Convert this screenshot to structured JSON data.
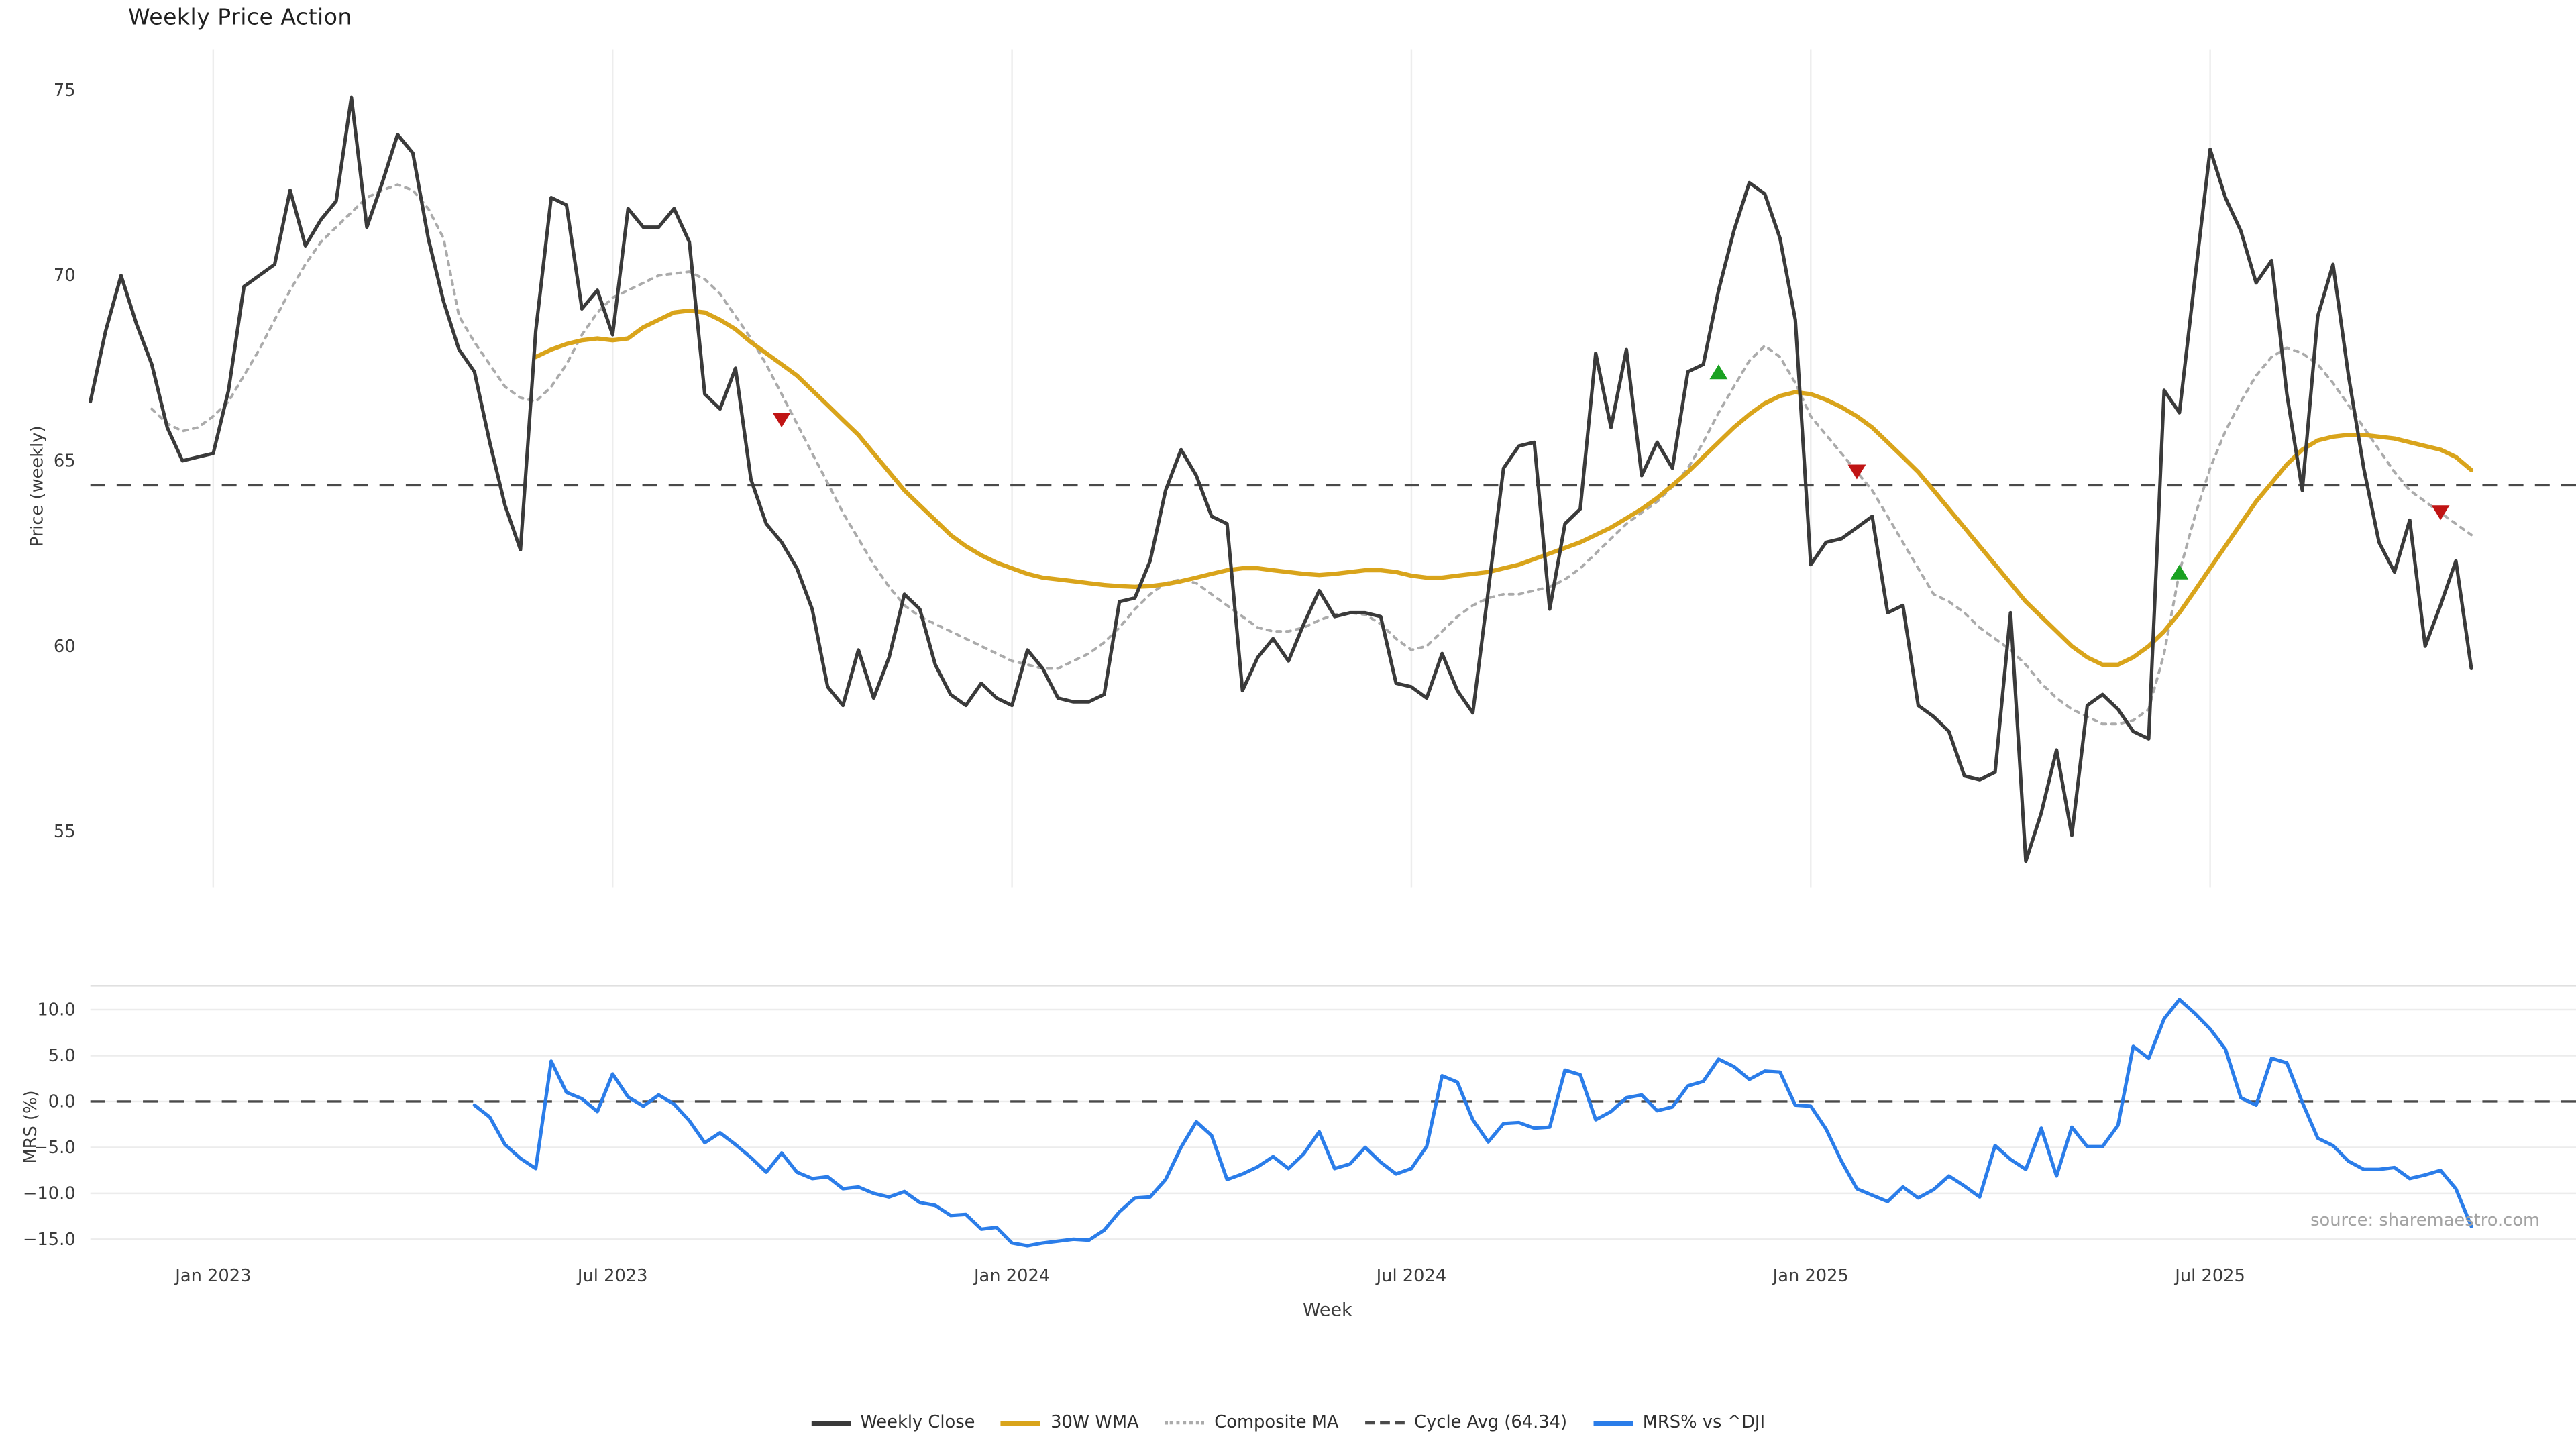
{
  "title": "Weekly Price Action",
  "xlabel": "Week",
  "source": "source: sharemaestro.com",
  "colors": {
    "close": "#3a3a3a",
    "wma": "#d9a41b",
    "composite": "#ababab",
    "cycle": "#4a4a4a",
    "mrs": "#2b7de9",
    "marker_up": "#1aa121",
    "marker_down": "#c01414",
    "grid_v": "#ededed",
    "grid_h": "#ececec",
    "panel_border": "#e0e0e0",
    "tick_text": "#3c3c3c"
  },
  "price_panel": {
    "ylabel": "Price (weekly)",
    "yticks": [
      55,
      60,
      65,
      70,
      75
    ],
    "ylim": [
      53.5,
      76.1
    ]
  },
  "mrs_panel": {
    "ylabel": "MRS (%)",
    "yticks": [
      10,
      5,
      0,
      -5,
      -10,
      -15
    ],
    "ytick_labels": [
      "10.0",
      "5.0",
      "0.0",
      "−5.0",
      "−10.0",
      "−15.0"
    ],
    "ylim": [
      -17.8,
      12.6
    ]
  },
  "x_ticks": [
    {
      "week": 8,
      "label": "Jan 2023"
    },
    {
      "week": 34,
      "label": "Jul 2023"
    },
    {
      "week": 60,
      "label": "Jan 2024"
    },
    {
      "week": 86,
      "label": "Jul 2024"
    },
    {
      "week": 112,
      "label": "Jan 2025"
    },
    {
      "week": 138,
      "label": "Jul 2025"
    }
  ],
  "legend": [
    {
      "label": "Weekly Close",
      "style": "solid",
      "color": "#3a3a3a"
    },
    {
      "label": "30W WMA",
      "style": "solid",
      "color": "#d9a41b"
    },
    {
      "label": "Composite MA",
      "style": "dotted",
      "color": "#ababab"
    },
    {
      "label": "Cycle Avg (64.34)",
      "style": "dashed",
      "color": "#4a4a4a"
    },
    {
      "label": "MRS% vs ^DJI",
      "style": "solid",
      "color": "#2b7de9"
    }
  ],
  "chart_data": {
    "type": "line",
    "title": "Weekly Price Action",
    "x_axis": "weeks since Nov 2022 (Jan 2023 = week 8, 6-month tick spacing)",
    "cycle_avg": 64.34,
    "weekly_close": {
      "start_week": 0,
      "values": [
        66.6,
        68.5,
        70.0,
        68.7,
        67.6,
        65.9,
        65.0,
        65.1,
        65.2,
        66.9,
        69.7,
        70.0,
        70.3,
        72.3,
        70.8,
        71.5,
        72.0,
        74.8,
        71.3,
        72.5,
        73.8,
        73.3,
        71.0,
        69.3,
        68.0,
        67.4,
        65.5,
        63.8,
        62.6,
        68.5,
        72.1,
        71.9,
        69.1,
        69.6,
        68.4,
        71.8,
        71.3,
        71.3,
        71.8,
        70.9,
        66.8,
        66.4,
        67.5,
        64.5,
        63.3,
        62.8,
        62.1,
        61.0,
        58.9,
        58.4,
        59.9,
        58.6,
        59.7,
        61.4,
        61.0,
        59.5,
        58.7,
        58.4,
        59.0,
        58.6,
        58.4,
        59.9,
        59.4,
        58.6,
        58.5,
        58.5,
        58.7,
        61.2,
        61.3,
        62.3,
        64.2,
        65.3,
        64.6,
        63.5,
        63.3,
        58.8,
        59.7,
        60.2,
        59.6,
        60.6,
        61.5,
        60.8,
        60.9,
        60.9,
        60.8,
        59.0,
        58.9,
        58.6,
        59.8,
        58.8,
        58.2,
        61.5,
        64.8,
        65.4,
        65.5,
        61.0,
        63.3,
        63.7,
        67.9,
        65.9,
        68.0,
        64.6,
        65.5,
        64.8,
        67.4,
        67.6,
        69.6,
        71.2,
        72.5,
        72.2,
        71.0,
        68.8,
        62.2,
        62.8,
        62.9,
        63.2,
        63.5,
        60.9,
        61.1,
        58.4,
        58.1,
        57.7,
        56.5,
        56.4,
        56.6,
        60.9,
        54.2,
        55.5,
        57.2,
        54.9,
        58.4,
        58.7,
        58.3,
        57.7,
        57.5,
        66.9,
        66.3,
        69.9,
        73.4,
        72.1,
        71.2,
        69.8,
        70.4,
        66.8,
        64.2,
        68.9,
        70.3,
        67.3,
        64.8,
        62.8,
        62.0,
        63.4,
        60.0,
        61.1,
        62.3,
        59.4
      ]
    },
    "wma_30": {
      "start_week": 29,
      "values": [
        67.8,
        68.0,
        68.15,
        68.25,
        68.3,
        68.25,
        68.3,
        68.6,
        68.8,
        69.0,
        69.05,
        69.0,
        68.8,
        68.55,
        68.2,
        67.9,
        67.6,
        67.3,
        66.9,
        66.5,
        66.1,
        65.7,
        65.2,
        64.7,
        64.2,
        63.8,
        63.4,
        63.0,
        62.7,
        62.45,
        62.25,
        62.1,
        61.95,
        61.85,
        61.8,
        61.75,
        61.7,
        61.65,
        61.62,
        61.6,
        61.62,
        61.67,
        61.75,
        61.85,
        61.95,
        62.05,
        62.1,
        62.1,
        62.05,
        62.0,
        61.95,
        61.92,
        61.95,
        62.0,
        62.05,
        62.05,
        62.0,
        61.9,
        61.85,
        61.85,
        61.9,
        61.95,
        62.0,
        62.1,
        62.2,
        62.35,
        62.5,
        62.65,
        62.8,
        63.0,
        63.2,
        63.45,
        63.7,
        64.0,
        64.34,
        64.7,
        65.1,
        65.5,
        65.9,
        66.25,
        66.55,
        66.75,
        66.85,
        66.8,
        66.65,
        66.45,
        66.2,
        65.9,
        65.5,
        65.1,
        64.7,
        64.2,
        63.7,
        63.2,
        62.7,
        62.2,
        61.7,
        61.2,
        60.8,
        60.4,
        60.0,
        59.7,
        59.5,
        59.5,
        59.7,
        60.0,
        60.4,
        60.9,
        61.5,
        62.1,
        62.7,
        63.3,
        63.9,
        64.4,
        64.9,
        65.3,
        65.55,
        65.65,
        65.7,
        65.7,
        65.65,
        65.6,
        65.5,
        65.4,
        65.3,
        65.1,
        64.75
      ]
    },
    "composite_ma": {
      "start_week": 4,
      "values": [
        66.4,
        66.0,
        65.8,
        65.9,
        66.2,
        66.6,
        67.3,
        68.0,
        68.8,
        69.6,
        70.3,
        70.9,
        71.3,
        71.7,
        72.1,
        72.3,
        72.45,
        72.3,
        71.8,
        71.0,
        68.9,
        68.2,
        67.6,
        67.0,
        66.7,
        66.6,
        67.0,
        67.6,
        68.4,
        69.0,
        69.4,
        69.6,
        69.8,
        70.0,
        70.05,
        70.1,
        69.9,
        69.5,
        68.9,
        68.3,
        67.6,
        66.8,
        66.0,
        65.2,
        64.4,
        63.6,
        62.9,
        62.2,
        61.6,
        61.1,
        60.8,
        60.6,
        60.4,
        60.2,
        60.0,
        59.8,
        59.6,
        59.5,
        59.4,
        59.4,
        59.6,
        59.8,
        60.1,
        60.5,
        61.0,
        61.4,
        61.7,
        61.8,
        61.7,
        61.4,
        61.1,
        60.8,
        60.5,
        60.4,
        60.4,
        60.5,
        60.7,
        60.85,
        60.9,
        60.85,
        60.6,
        60.2,
        59.9,
        60.0,
        60.4,
        60.8,
        61.1,
        61.3,
        61.4,
        61.4,
        61.5,
        61.6,
        61.8,
        62.1,
        62.5,
        62.9,
        63.3,
        63.6,
        63.9,
        64.3,
        64.8,
        65.5,
        66.3,
        67.0,
        67.7,
        68.1,
        67.8,
        67.1,
        66.2,
        65.7,
        65.2,
        64.7,
        64.2,
        63.5,
        62.8,
        62.1,
        61.4,
        61.2,
        60.9,
        60.5,
        60.2,
        59.9,
        59.5,
        59.0,
        58.6,
        58.3,
        58.1,
        57.9,
        57.9,
        58.0,
        58.3,
        59.8,
        62.0,
        63.5,
        64.8,
        65.8,
        66.6,
        67.3,
        67.8,
        68.05,
        67.9,
        67.6,
        67.1,
        66.5,
        65.9,
        65.3,
        64.7,
        64.2,
        63.9,
        63.6,
        63.3,
        63.0
      ]
    },
    "mrs_pct": {
      "start_week": 25,
      "values": [
        -0.4,
        -1.7,
        -4.7,
        -6.2,
        -7.3,
        4.4,
        1.0,
        0.3,
        -1.1,
        3.0,
        0.5,
        -0.5,
        0.7,
        -0.3,
        -2.1,
        -4.5,
        -3.4,
        -4.7,
        -6.1,
        -7.7,
        -5.6,
        -7.7,
        -8.4,
        -8.2,
        -9.5,
        -9.3,
        -10.0,
        -10.4,
        -9.8,
        -11.0,
        -11.3,
        -12.4,
        -12.3,
        -13.9,
        -13.7,
        -15.4,
        -15.7,
        -15.4,
        -15.2,
        -15.0,
        -15.1,
        -14.0,
        -12.0,
        -10.5,
        -10.4,
        -8.5,
        -5.0,
        -2.2,
        -3.7,
        -8.5,
        -7.9,
        -7.1,
        -6.0,
        -7.3,
        -5.7,
        -3.3,
        -7.3,
        -6.8,
        -5.0,
        -6.6,
        -7.9,
        -7.3,
        -4.9,
        2.8,
        2.1,
        -2.0,
        -4.4,
        -2.4,
        -2.3,
        -2.9,
        -2.8,
        3.4,
        2.9,
        -2.0,
        -1.1,
        0.4,
        0.7,
        -1.0,
        -0.6,
        1.7,
        2.2,
        4.6,
        3.8,
        2.4,
        3.3,
        3.2,
        -0.4,
        -0.5,
        -3.0,
        -6.5,
        -9.5,
        -10.2,
        -10.9,
        -9.3,
        -10.5,
        -9.6,
        -8.1,
        -9.2,
        -10.4,
        -4.8,
        -6.3,
        -7.4,
        -2.9,
        -8.1,
        -2.8,
        -4.9,
        -4.9,
        -2.6,
        6.0,
        4.7,
        9.0,
        11.1,
        9.6,
        7.9,
        5.7,
        0.4,
        -0.4,
        4.7,
        4.2,
        -0.1,
        -4.0,
        -4.8,
        -6.5,
        -7.4,
        -7.4,
        -7.2,
        -8.4,
        -8.0,
        -7.5,
        -9.5,
        -13.6
      ]
    },
    "markers": [
      {
        "week": 45,
        "value": 66.1,
        "direction": "down"
      },
      {
        "week": 106,
        "value": 67.4,
        "direction": "up"
      },
      {
        "week": 115,
        "value": 64.7,
        "direction": "down"
      },
      {
        "week": 136,
        "value": 62.0,
        "direction": "up"
      },
      {
        "week": 153,
        "value": 63.6,
        "direction": "down"
      }
    ]
  }
}
